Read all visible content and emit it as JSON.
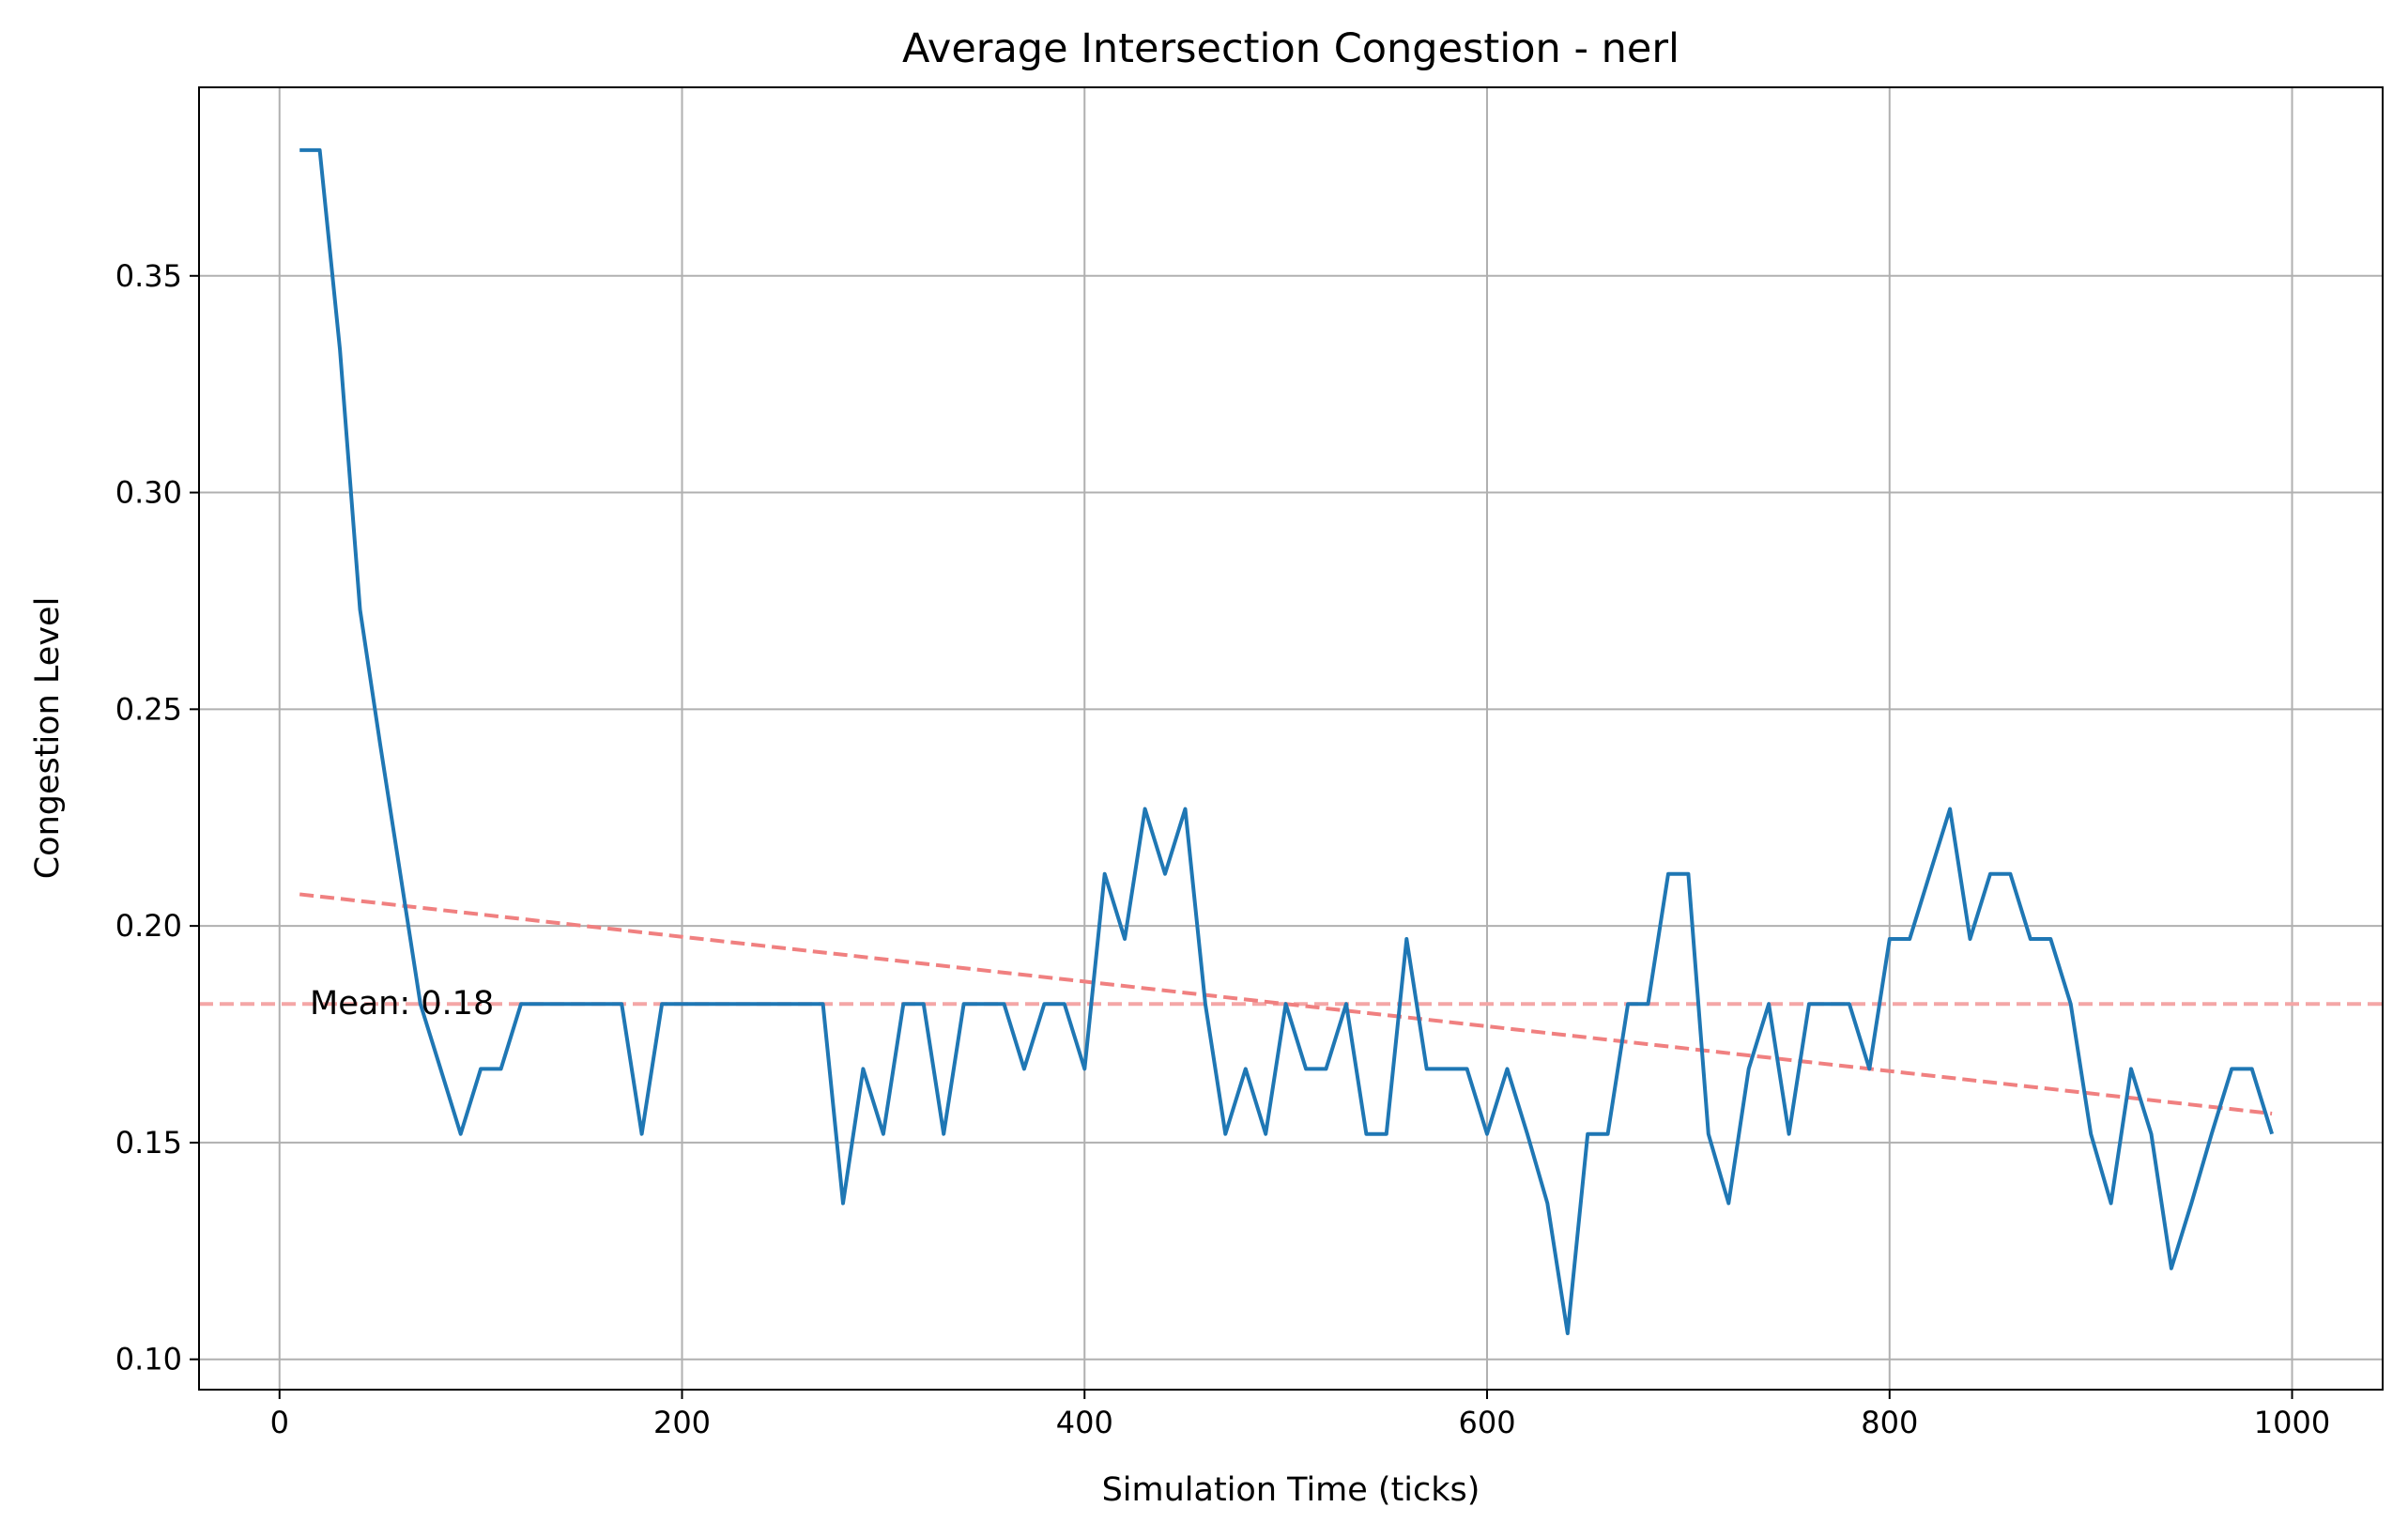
{
  "chart_data": {
    "type": "line",
    "title": "Average Intersection Congestion - nerl",
    "xlabel": "Simulation Time (ticks)",
    "ylabel": "Congestion Level",
    "xlim": [
      -40,
      1045
    ],
    "ylim": [
      0.093,
      0.3935
    ],
    "xticks": [
      "0",
      "200",
      "400",
      "600",
      "800",
      "1000"
    ],
    "yticks": [
      "0.10",
      "0.15",
      "0.20",
      "0.25",
      "0.30",
      "0.35"
    ],
    "grid": true,
    "series": [
      {
        "color": "#1f77b4",
        "x": [
          10,
          20,
          30,
          40,
          50,
          60,
          70,
          80,
          90,
          100,
          110,
          120,
          130,
          140,
          150,
          160,
          170,
          180,
          190,
          200,
          210,
          220,
          230,
          240,
          250,
          260,
          270,
          280,
          290,
          300,
          310,
          320,
          330,
          340,
          350,
          360,
          370,
          380,
          390,
          400,
          410,
          420,
          430,
          440,
          450,
          460,
          470,
          480,
          490,
          500,
          510,
          520,
          530,
          540,
          550,
          560,
          570,
          580,
          590,
          600,
          610,
          620,
          630,
          640,
          650,
          660,
          670,
          680,
          690,
          700,
          710,
          720,
          730,
          740,
          750,
          760,
          770,
          780,
          790,
          800,
          810,
          820,
          830,
          840,
          850,
          860,
          870,
          880,
          890,
          900,
          910,
          920,
          930,
          940,
          950,
          960,
          970,
          980,
          990
        ],
        "y": [
          0.379,
          0.379,
          0.333,
          0.273,
          0.242,
          0.212,
          0.182,
          0.167,
          0.152,
          0.167,
          0.167,
          0.182,
          0.182,
          0.182,
          0.182,
          0.182,
          0.182,
          0.152,
          0.182,
          0.182,
          0.182,
          0.182,
          0.182,
          0.182,
          0.182,
          0.182,
          0.182,
          0.136,
          0.167,
          0.152,
          0.182,
          0.182,
          0.152,
          0.182,
          0.182,
          0.182,
          0.167,
          0.182,
          0.182,
          0.167,
          0.212,
          0.197,
          0.227,
          0.212,
          0.227,
          0.182,
          0.152,
          0.167,
          0.152,
          0.182,
          0.167,
          0.167,
          0.182,
          0.152,
          0.152,
          0.197,
          0.167,
          0.167,
          0.167,
          0.152,
          0.167,
          0.152,
          0.136,
          0.106,
          0.152,
          0.152,
          0.182,
          0.182,
          0.212,
          0.212,
          0.152,
          0.136,
          0.167,
          0.182,
          0.152,
          0.182,
          0.182,
          0.182,
          0.167,
          0.197,
          0.197,
          0.212,
          0.227,
          0.197,
          0.212,
          0.212,
          0.197,
          0.197,
          0.182,
          0.152,
          0.136,
          0.167,
          0.152,
          0.121,
          0.136,
          0.152,
          0.167,
          0.167,
          0.152
        ]
      }
    ],
    "trend_line": {
      "color": "#f08080",
      "x": [
        10,
        990
      ],
      "y": [
        0.2073,
        0.1567
      ],
      "style": "dashed"
    },
    "mean_line": {
      "color": "#f4a6a6",
      "value": 0.182,
      "style": "dashed",
      "label": "Mean: 0.18"
    }
  }
}
